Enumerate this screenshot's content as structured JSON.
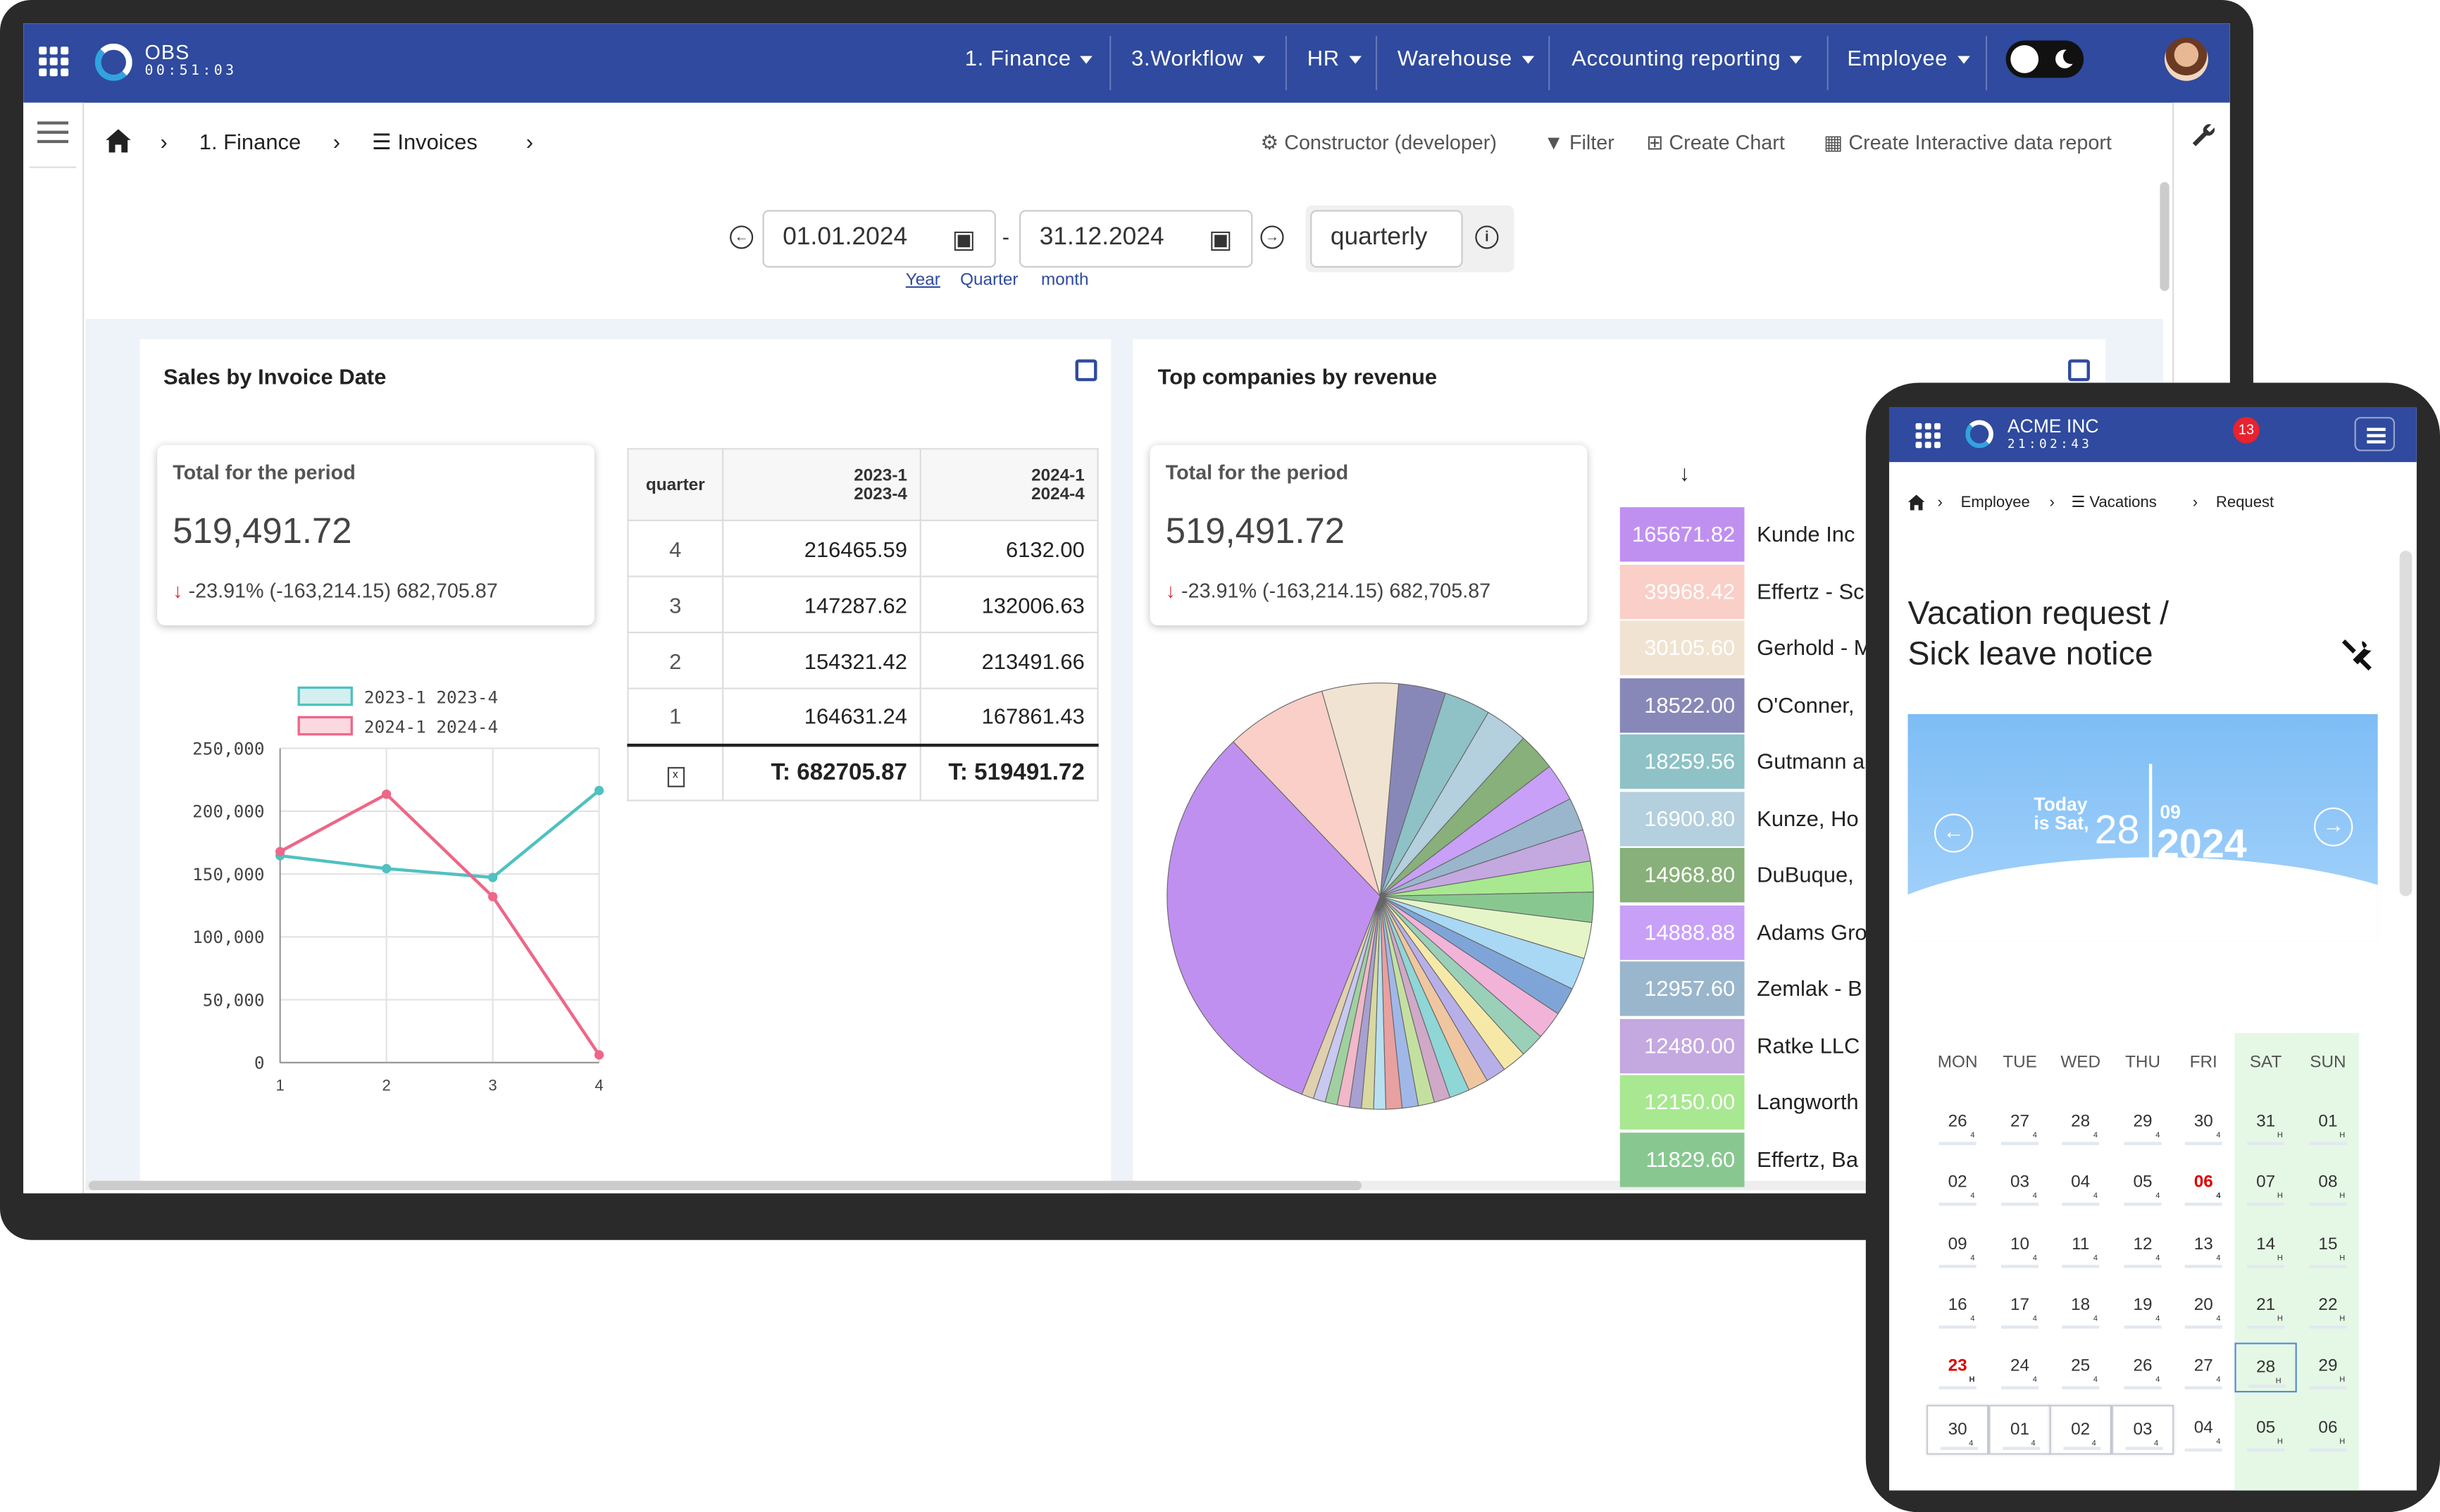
{
  "app": {
    "name": "OBS",
    "clock": "00:51:03"
  },
  "topnav": [
    {
      "label": "1. Finance"
    },
    {
      "label": "3.Workflow"
    },
    {
      "label": "HR"
    },
    {
      "label": "Warehouse"
    },
    {
      "label": "Accounting reporting"
    },
    {
      "label": "Employee"
    }
  ],
  "breadcrumb": {
    "item1": "1. Finance",
    "item2": "Invoices"
  },
  "toolbar": {
    "constructor": "Constructor (developer)",
    "filter": "Filter",
    "create_chart": "Create Chart",
    "create_report": "Create Interactive data report"
  },
  "period": {
    "from": "01.01.2024",
    "to": "31.12.2024",
    "separator": "-",
    "granularity": "quarterly",
    "presets": [
      "Year",
      "Quarter",
      "month"
    ],
    "info_icon": "i"
  },
  "sales_card": {
    "title": "Sales by Invoice Date",
    "total_label": "Total for the period",
    "total_value": "519,491.72",
    "delta_arrow": "↓",
    "delta_text": "-23.91% (-163,214.15) 682,705.87",
    "table": {
      "col1": "quarter",
      "col2": [
        "2023-1",
        "2023-4"
      ],
      "col3": [
        "2024-1",
        "2024-4"
      ],
      "rows": [
        [
          "4",
          "216465.59",
          "6132.00"
        ],
        [
          "3",
          "147287.62",
          "132006.63"
        ],
        [
          "2",
          "154321.42",
          "213491.66"
        ],
        [
          "1",
          "164631.24",
          "167861.43"
        ]
      ],
      "total2": "T: 682705.87",
      "total3": "T: 519491.72"
    }
  },
  "chart_data": [
    {
      "type": "line",
      "x": [
        1,
        2,
        3,
        4
      ],
      "series": [
        {
          "name": "2023-1 2023-4",
          "values": [
            164631.24,
            154321.42,
            147287.62,
            216465.59
          ],
          "color": "#4fc1c0"
        },
        {
          "name": "2024-1 2024-4",
          "values": [
            167861.43,
            213491.66,
            132006.63,
            6132.0
          ],
          "color": "#ee6688"
        }
      ],
      "ylim": [
        0,
        250000
      ],
      "yticks": [
        "250,000",
        "200,000",
        "150,000",
        "100,000",
        "50,000",
        "0"
      ],
      "xticks": [
        "1",
        "2",
        "3",
        "4"
      ],
      "legend": "top"
    },
    {
      "type": "pie",
      "title": "Top companies by revenue",
      "slices": [
        {
          "label": "Kunde Inc",
          "value": 165671.82,
          "color": "#c090f0"
        },
        {
          "label": "Effertz - Sc",
          "value": 39968.42,
          "color": "#f9cfc7"
        },
        {
          "label": "Gerhold - M",
          "value": 30105.6,
          "color": "#f1e3d2"
        },
        {
          "label": "O'Conner,",
          "value": 18522.0,
          "color": "#8888b8"
        },
        {
          "label": "Gutmann a",
          "value": 18259.56,
          "color": "#8ec2c6"
        },
        {
          "label": "Kunze, Ho",
          "value": 16900.8,
          "color": "#b4cfdd"
        },
        {
          "label": "DuBuque,",
          "value": 14968.8,
          "color": "#88b07a"
        },
        {
          "label": "Adams Gro",
          "value": 14888.88,
          "color": "#c8a0f8"
        },
        {
          "label": "Zemlak - B",
          "value": 12957.6,
          "color": "#9ab6cc"
        },
        {
          "label": "Ratke LLC",
          "value": 12480.0,
          "color": "#c4a8e0"
        },
        {
          "label": "Langworth",
          "value": 12150.0,
          "color": "#a8e890"
        },
        {
          "label": "Effertz, Ba",
          "value": 11829.6,
          "color": "#88c890"
        }
      ]
    }
  ],
  "companies_card": {
    "title": "Top companies by revenue",
    "total_label": "Total for the period",
    "total_value": "519,491.72",
    "delta_arrow": "↓",
    "delta_text": "-23.91% (-163,214.15) 682,705.87",
    "sort_arrow": "↓"
  },
  "phone": {
    "company": "ACME INC",
    "clock": "21:02:43",
    "badge": "13",
    "breadcrumb": [
      "Employee",
      "Vacations",
      "Request"
    ],
    "title_line1": "Vacation request /",
    "title_line2": "Sick leave notice",
    "today_label": "Today is Sat,",
    "today_day": "28",
    "today_month": "09",
    "today_year": "2024",
    "weekdays": [
      "MON",
      "TUE",
      "WED",
      "THU",
      "FRI",
      "SAT",
      "SUN"
    ],
    "weeks": [
      [
        [
          "26",
          "4"
        ],
        [
          "27",
          "4"
        ],
        [
          "28",
          "4"
        ],
        [
          "29",
          "4"
        ],
        [
          "30",
          "4"
        ],
        [
          "31",
          "H"
        ],
        [
          "01",
          "H"
        ]
      ],
      [
        [
          "02",
          "4"
        ],
        [
          "03",
          "4"
        ],
        [
          "04",
          "4"
        ],
        [
          "05",
          "4"
        ],
        [
          "06",
          "4"
        ],
        [
          "07",
          "H"
        ],
        [
          "08",
          "H"
        ]
      ],
      [
        [
          "09",
          "4"
        ],
        [
          "10",
          "4"
        ],
        [
          "11",
          "4"
        ],
        [
          "12",
          "4"
        ],
        [
          "13",
          "4"
        ],
        [
          "14",
          "H"
        ],
        [
          "15",
          "H"
        ]
      ],
      [
        [
          "16",
          "4"
        ],
        [
          "17",
          "4"
        ],
        [
          "18",
          "4"
        ],
        [
          "19",
          "4"
        ],
        [
          "20",
          "4"
        ],
        [
          "21",
          "H"
        ],
        [
          "22",
          "H"
        ]
      ],
      [
        [
          "23",
          "H"
        ],
        [
          "24",
          "4"
        ],
        [
          "25",
          "4"
        ],
        [
          "26",
          "4"
        ],
        [
          "27",
          "4"
        ],
        [
          "28",
          "H"
        ],
        [
          "29",
          "H"
        ]
      ],
      [
        [
          "30",
          "4"
        ],
        [
          "01",
          "4"
        ],
        [
          "02",
          "4"
        ],
        [
          "03",
          "4"
        ],
        [
          "04",
          "4"
        ],
        [
          "05",
          "H"
        ],
        [
          "06",
          "H"
        ]
      ]
    ]
  }
}
